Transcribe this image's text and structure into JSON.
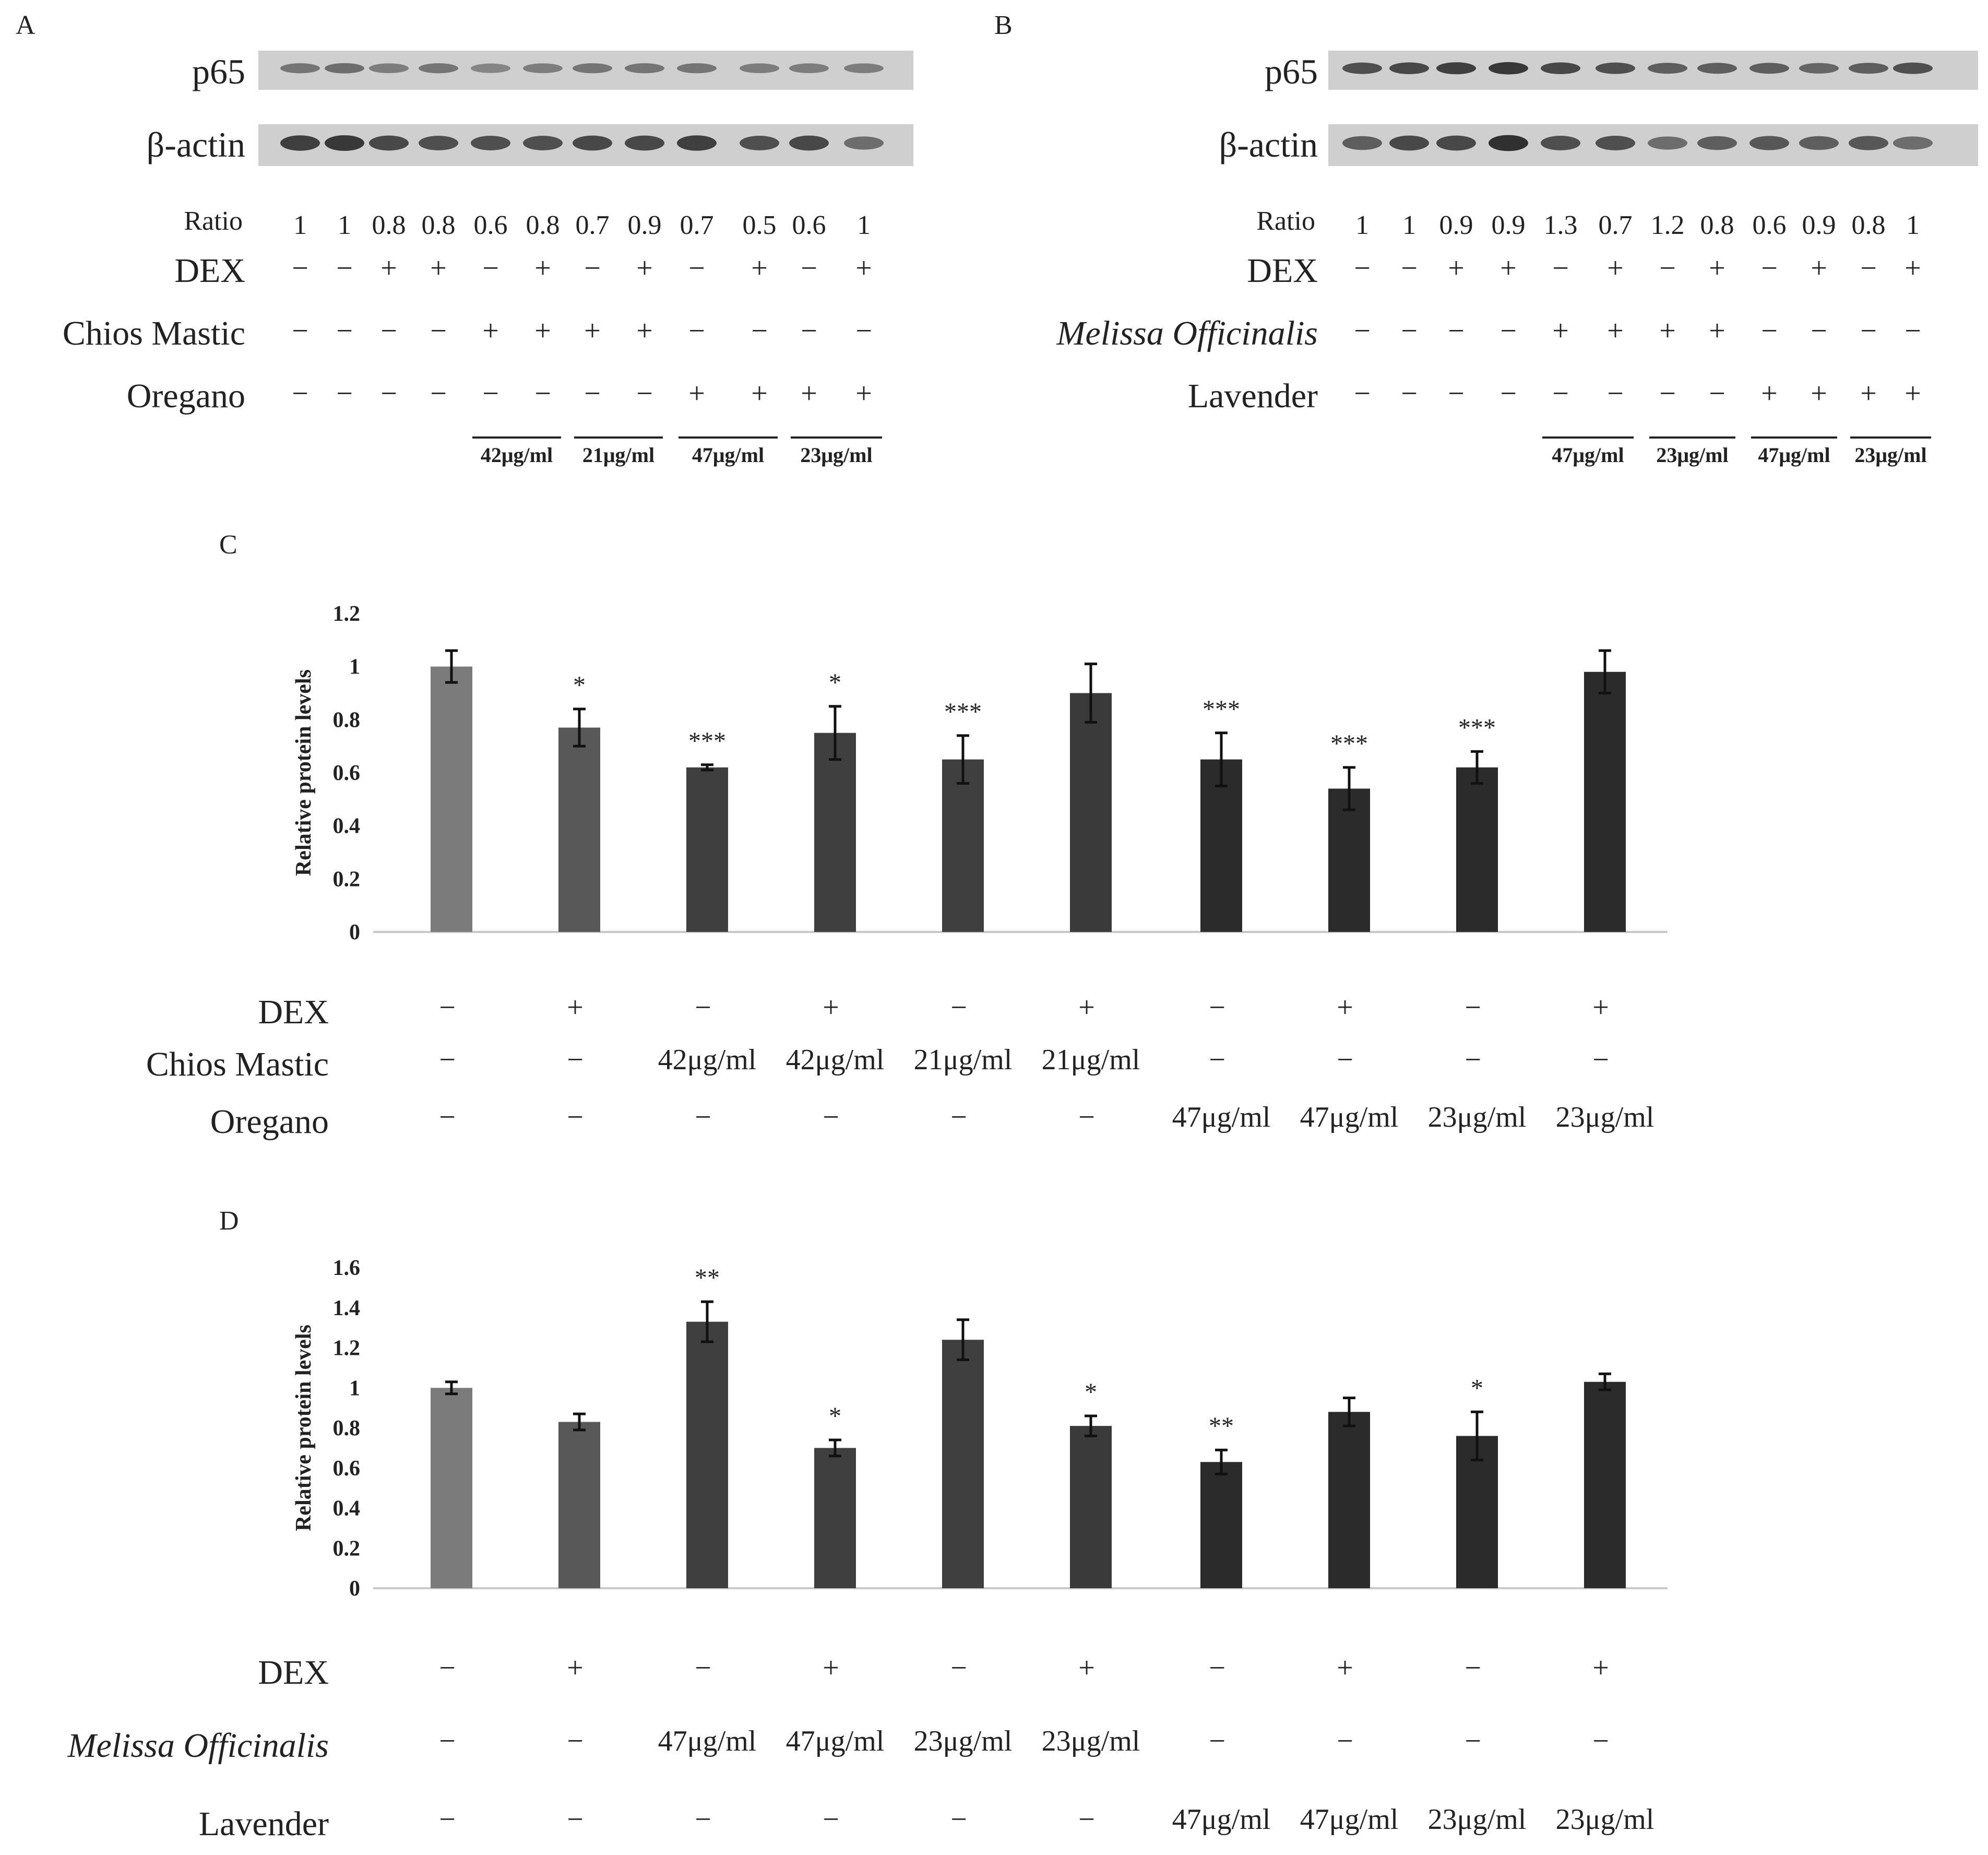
{
  "blots": [
    {
      "panel_label": "A",
      "p65_label": "p65",
      "actin_label": "β-actin",
      "ratio_label": "Ratio",
      "ratios": [
        "1",
        "1",
        "0.8",
        "0.8",
        "0.6",
        "0.8",
        "0.7",
        "0.9",
        "0.7",
        "0.5",
        "0.6",
        "1"
      ],
      "p65_intensity": [
        0.55,
        0.6,
        0.5,
        0.55,
        0.45,
        0.5,
        0.55,
        0.55,
        0.55,
        0.5,
        0.5,
        0.5
      ],
      "actin_intensity": [
        0.9,
        0.95,
        0.85,
        0.8,
        0.8,
        0.8,
        0.85,
        0.85,
        0.9,
        0.8,
        0.85,
        0.6
      ],
      "rows": [
        {
          "label": "DEX",
          "italic": false,
          "signs": [
            "−",
            "−",
            "+",
            "+",
            "−",
            "+",
            "−",
            "+",
            "−",
            "+",
            "−",
            "+"
          ]
        },
        {
          "label": "Chios Mastic",
          "italic": false,
          "signs": [
            "−",
            "−",
            "−",
            "−",
            "+",
            "+",
            "+",
            "+",
            "−",
            "−",
            "−",
            "−"
          ]
        },
        {
          "label": "Oregano",
          "italic": false,
          "signs": [
            "−",
            "−",
            "−",
            "−",
            "−",
            "−",
            "−",
            "−",
            "+",
            "+",
            "+",
            "+"
          ]
        }
      ],
      "dose_groups": [
        {
          "label": "42μg/ml",
          "lanes": [
            5,
            6
          ]
        },
        {
          "label": "21μg/ml",
          "lanes": [
            7,
            8
          ]
        },
        {
          "label": "47μg/ml",
          "lanes": [
            9,
            10
          ]
        },
        {
          "label": "23μg/ml",
          "lanes": [
            11,
            12
          ]
        }
      ]
    },
    {
      "panel_label": "B",
      "p65_label": "p65",
      "actin_label": "β-actin",
      "ratio_label": "Ratio",
      "ratios": [
        "1",
        "1",
        "0.9",
        "0.9",
        "1.3",
        "0.7",
        "1.2",
        "0.8",
        "0.6",
        "0.9",
        "0.8",
        "1"
      ],
      "p65_intensity": [
        0.8,
        0.85,
        0.9,
        0.95,
        0.85,
        0.8,
        0.7,
        0.7,
        0.7,
        0.65,
        0.7,
        0.8
      ],
      "actin_intensity": [
        0.7,
        0.85,
        0.85,
        1.0,
        0.8,
        0.8,
        0.6,
        0.7,
        0.75,
        0.7,
        0.75,
        0.6
      ],
      "rows": [
        {
          "label": "DEX",
          "italic": false,
          "signs": [
            "−",
            "−",
            "+",
            "+",
            "−",
            "+",
            "−",
            "+",
            "−",
            "+",
            "−",
            "+"
          ]
        },
        {
          "label": "Melissa Officinalis",
          "italic": true,
          "signs": [
            "−",
            "−",
            "−",
            "−",
            "+",
            "+",
            "+",
            "+",
            "−",
            "−",
            "−",
            "−"
          ]
        },
        {
          "label": "Lavender",
          "italic": false,
          "signs": [
            "−",
            "−",
            "−",
            "−",
            "−",
            "−",
            "−",
            "−",
            "+",
            "+",
            "+",
            "+"
          ]
        }
      ],
      "dose_groups": [
        {
          "label": "47μg/ml",
          "lanes": [
            5,
            6
          ]
        },
        {
          "label": "23μg/ml",
          "lanes": [
            7,
            8
          ]
        },
        {
          "label": "47μg/ml",
          "lanes": [
            9,
            10
          ]
        },
        {
          "label": "23μg/ml",
          "lanes": [
            11,
            12
          ]
        }
      ]
    }
  ],
  "chart_data": [
    {
      "panel_label": "C",
      "type": "bar",
      "ylabel": "Relative protein levels",
      "ylim": [
        0,
        1.2
      ],
      "yticks": [
        "0",
        "0.2",
        "0.4",
        "0.6",
        "0.8",
        "1",
        "1.2"
      ],
      "ytick_values": [
        0,
        0.2,
        0.4,
        0.6,
        0.8,
        1,
        1.2
      ],
      "values": [
        1.0,
        0.77,
        0.62,
        0.75,
        0.65,
        0.9,
        0.65,
        0.54,
        0.62,
        0.98
      ],
      "errors": [
        0.06,
        0.07,
        0.01,
        0.1,
        0.09,
        0.11,
        0.1,
        0.08,
        0.06,
        0.08
      ],
      "significance": [
        "",
        "*",
        "***",
        "*",
        "***",
        "",
        "***",
        "***",
        "***",
        ""
      ],
      "bar_colors": [
        "#7b7b7b",
        "#585858",
        "#3f3f3f",
        "#3f3f3f",
        "#3f3f3f",
        "#3a3a3a",
        "#2b2b2b",
        "#2b2b2b",
        "#2b2b2b",
        "#2b2b2b"
      ],
      "rows": [
        {
          "label": "DEX",
          "italic": false,
          "cells": [
            "−",
            "+",
            "−",
            "+",
            "−",
            "+",
            "−",
            "+",
            "−",
            "+"
          ]
        },
        {
          "label": "Chios Mastic",
          "italic": false,
          "cells": [
            "−",
            "−",
            "42μg/ml",
            "42μg/ml",
            "21μg/ml",
            "21μg/ml",
            "−",
            "−",
            "−",
            "−"
          ]
        },
        {
          "label": "Oregano",
          "italic": false,
          "cells": [
            "−",
            "−",
            "−",
            "−",
            "−",
            "−",
            "47μg/ml",
            "47μg/ml",
            "23μg/ml",
            "23μg/ml"
          ]
        }
      ]
    },
    {
      "panel_label": "D",
      "type": "bar",
      "ylabel": "Relative protein levels",
      "ylim": [
        0,
        1.6
      ],
      "yticks": [
        "0",
        "0.2",
        "0.4",
        "0.6",
        "0.8",
        "1",
        "1.2",
        "1.4",
        "1.6"
      ],
      "ytick_values": [
        0,
        0.2,
        0.4,
        0.6,
        0.8,
        1,
        1.2,
        1.4,
        1.6
      ],
      "values": [
        1.0,
        0.83,
        1.33,
        0.7,
        1.24,
        0.81,
        0.63,
        0.88,
        0.76,
        1.03
      ],
      "errors": [
        0.03,
        0.04,
        0.1,
        0.04,
        0.1,
        0.05,
        0.06,
        0.07,
        0.12,
        0.04
      ],
      "significance": [
        "",
        "",
        "**",
        "*",
        "",
        "*",
        "**",
        "",
        "*",
        ""
      ],
      "bar_colors": [
        "#7b7b7b",
        "#585858",
        "#3f3f3f",
        "#3f3f3f",
        "#3f3f3f",
        "#3a3a3a",
        "#2b2b2b",
        "#2b2b2b",
        "#2b2b2b",
        "#2b2b2b"
      ],
      "rows": [
        {
          "label": "DEX",
          "italic": false,
          "cells": [
            "−",
            "+",
            "−",
            "+",
            "−",
            "+",
            "−",
            "+",
            "−",
            "+"
          ]
        },
        {
          "label": "Melissa Officinalis",
          "italic": true,
          "cells": [
            "−",
            "−",
            "47μg/ml",
            "47μg/ml",
            "23μg/ml",
            "23μg/ml",
            "−",
            "−",
            "−",
            "−"
          ]
        },
        {
          "label": "Lavender",
          "italic": false,
          "cells": [
            "−",
            "−",
            "−",
            "−",
            "−",
            "−",
            "47μg/ml",
            "47μg/ml",
            "23μg/ml",
            "23μg/ml"
          ]
        }
      ]
    }
  ]
}
